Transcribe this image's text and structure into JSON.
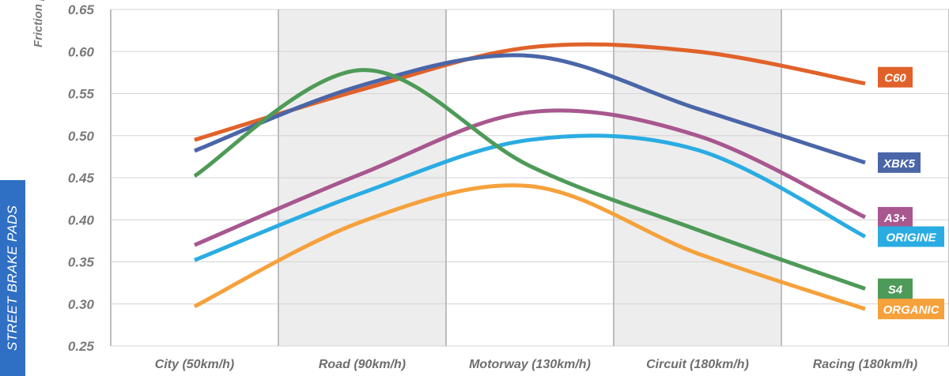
{
  "side_banner": {
    "text": "STREET BRAKE PADS",
    "color": "#2f6fc4"
  },
  "chart_data": {
    "type": "line",
    "title": "",
    "xlabel": "",
    "ylabel": "Friction µ",
    "ylim": [
      0.25,
      0.65
    ],
    "yticks": [
      0.25,
      0.3,
      0.35,
      0.4,
      0.45,
      0.5,
      0.55,
      0.6,
      0.65
    ],
    "ytick_labels": [
      "0.25",
      "0.30",
      "0.35",
      "0.40",
      "0.45",
      "0.50",
      "0.55",
      "0.60",
      "0.65"
    ],
    "categories": [
      "City (50km/h)",
      "Road (90km/h)",
      "Motorway (130km/h)",
      "Circuit (180km/h)",
      "Racing (180km/h)"
    ],
    "x": [
      0,
      1,
      2,
      3,
      4
    ],
    "grid": true,
    "shaded_bands": [
      "Road (90km/h)",
      "Circuit (180km/h)"
    ],
    "legend": "right, labels at line ends",
    "series": [
      {
        "name": "C60",
        "color": "#e0622a",
        "values": [
          0.495,
          0.555,
          0.605,
          0.6,
          0.562
        ]
      },
      {
        "name": "XBK5",
        "color": "#4a66a8",
        "values": [
          0.482,
          0.56,
          0.595,
          0.532,
          0.468
        ]
      },
      {
        "name": "A3+",
        "color": "#a8578f",
        "values": [
          0.37,
          0.455,
          0.528,
          0.5,
          0.403
        ]
      },
      {
        "name": "ORIGINE",
        "color": "#2aace2",
        "values": [
          0.352,
          0.432,
          0.495,
          0.483,
          0.38
        ]
      },
      {
        "name": "S4",
        "color": "#4e9a58",
        "values": [
          0.452,
          0.578,
          0.464,
          0.388,
          0.318
        ]
      },
      {
        "name": "ORGANIC",
        "color": "#f5a13c",
        "values": [
          0.297,
          0.398,
          0.44,
          0.36,
          0.294
        ]
      }
    ]
  }
}
